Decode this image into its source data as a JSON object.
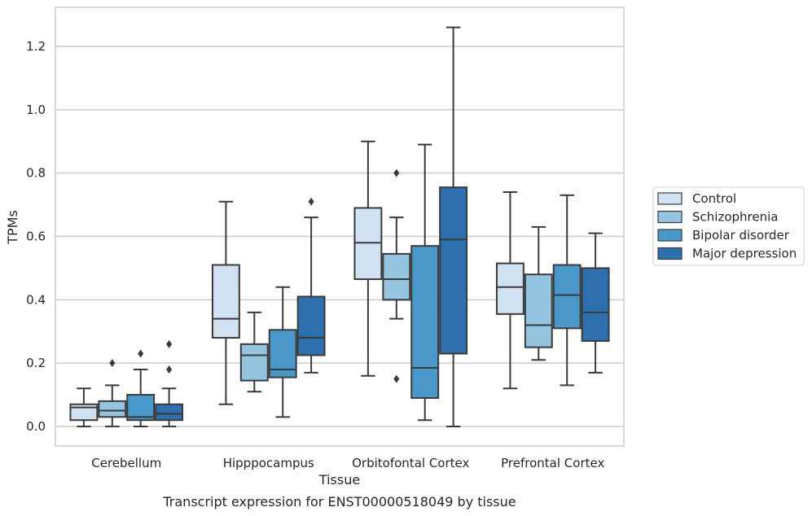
{
  "chart_data": {
    "type": "box",
    "title": "",
    "caption": "Transcript expression for ENST00000518049 by tissue",
    "xlabel": "Tissue",
    "ylabel": "TPMs",
    "ylim": [
      -0.06,
      1.32
    ],
    "yticks": [
      "0.0",
      "0.2",
      "0.4",
      "0.6",
      "0.8",
      "1.0",
      "1.2"
    ],
    "grid": "horizontal",
    "legend_position": "right",
    "categories": [
      "Cerebellum",
      "Hipppocampus",
      "Orbitofontal Cortex",
      "Prefrontal Cortex"
    ],
    "series": [
      {
        "name": "Control",
        "color": "#d0e1f2",
        "boxes": [
          {
            "min": 0.0,
            "q1": 0.02,
            "median": 0.06,
            "q3": 0.07,
            "max": 0.12,
            "outliers": []
          },
          {
            "min": 0.07,
            "q1": 0.28,
            "median": 0.34,
            "q3": 0.51,
            "max": 0.71,
            "outliers": []
          },
          {
            "min": 0.16,
            "q1": 0.465,
            "median": 0.58,
            "q3": 0.69,
            "max": 0.9,
            "outliers": []
          },
          {
            "min": 0.12,
            "q1": 0.355,
            "median": 0.44,
            "q3": 0.515,
            "max": 0.74,
            "outliers": []
          }
        ]
      },
      {
        "name": "Schizophrenia",
        "color": "#94c4df",
        "boxes": [
          {
            "min": 0.0,
            "q1": 0.03,
            "median": 0.05,
            "q3": 0.08,
            "max": 0.13,
            "outliers": [
              0.2
            ]
          },
          {
            "min": 0.11,
            "q1": 0.145,
            "median": 0.225,
            "q3": 0.26,
            "max": 0.36,
            "outliers": []
          },
          {
            "min": 0.34,
            "q1": 0.4,
            "median": 0.465,
            "q3": 0.545,
            "max": 0.66,
            "outliers": [
              0.8,
              0.15
            ]
          },
          {
            "min": 0.21,
            "q1": 0.25,
            "median": 0.32,
            "q3": 0.48,
            "max": 0.63,
            "outliers": []
          }
        ]
      },
      {
        "name": "Bipolar disorder",
        "color": "#4a98c9",
        "boxes": [
          {
            "min": 0.0,
            "q1": 0.02,
            "median": 0.03,
            "q3": 0.1,
            "max": 0.18,
            "outliers": [
              0.23
            ]
          },
          {
            "min": 0.03,
            "q1": 0.155,
            "median": 0.18,
            "q3": 0.305,
            "max": 0.44,
            "outliers": []
          },
          {
            "min": 0.02,
            "q1": 0.09,
            "median": 0.185,
            "q3": 0.57,
            "max": 0.89,
            "outliers": []
          },
          {
            "min": 0.13,
            "q1": 0.31,
            "median": 0.415,
            "q3": 0.51,
            "max": 0.73,
            "outliers": []
          }
        ]
      },
      {
        "name": "Major depression",
        "color": "#2e6fad",
        "boxes": [
          {
            "min": 0.0,
            "q1": 0.02,
            "median": 0.04,
            "q3": 0.07,
            "max": 0.12,
            "outliers": [
              0.26,
              0.18
            ]
          },
          {
            "min": 0.17,
            "q1": 0.225,
            "median": 0.28,
            "q3": 0.41,
            "max": 0.66,
            "outliers": [
              0.71
            ]
          },
          {
            "min": 0.0,
            "q1": 0.23,
            "median": 0.59,
            "q3": 0.755,
            "max": 1.26,
            "outliers": []
          },
          {
            "min": 0.17,
            "q1": 0.27,
            "median": 0.36,
            "q3": 0.5,
            "max": 0.61,
            "outliers": []
          }
        ]
      }
    ]
  }
}
